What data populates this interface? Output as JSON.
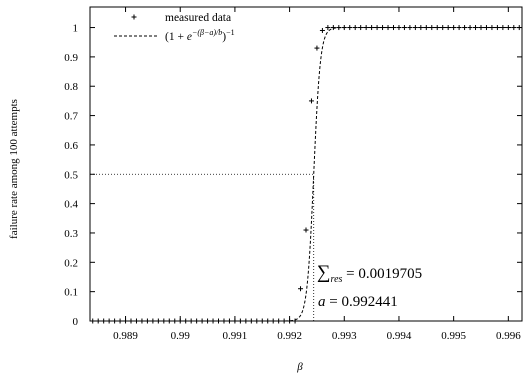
{
  "chart_data": {
    "type": "scatter",
    "title": "",
    "xlabel": "β",
    "ylabel": "failure rate among 100 attempts",
    "xlim": [
      0.98835,
      0.99625
    ],
    "ylim": [
      0,
      1.07
    ],
    "x_ticks": [
      0.989,
      0.99,
      0.991,
      0.992,
      0.993,
      0.994,
      0.995,
      0.996
    ],
    "x_tick_labels": [
      "0.989",
      "0.99",
      "0.991",
      "0.992",
      "0.993",
      "0.994",
      "0.995",
      "0.996"
    ],
    "y_ticks": [
      0,
      0.1,
      0.2,
      0.3,
      0.4,
      0.5,
      0.6,
      0.7,
      0.8,
      0.9,
      1
    ],
    "y_tick_labels": [
      "0",
      "0.1",
      "0.2",
      "0.3",
      "0.4",
      "0.5",
      "0.6",
      "0.7",
      "0.8",
      "0.9",
      "1"
    ],
    "grid": false,
    "legend_position": "top-left",
    "series": [
      {
        "name": "measured data",
        "type": "scatter",
        "marker": "+",
        "color": "#000000",
        "points": [
          [
            0.9884,
            0
          ],
          [
            0.9885,
            0
          ],
          [
            0.9886,
            0
          ],
          [
            0.9887,
            0
          ],
          [
            0.9888,
            0
          ],
          [
            0.9889,
            0
          ],
          [
            0.989,
            0
          ],
          [
            0.9891,
            0
          ],
          [
            0.9892,
            0
          ],
          [
            0.9893,
            0
          ],
          [
            0.9894,
            0
          ],
          [
            0.9895,
            0
          ],
          [
            0.9896,
            0
          ],
          [
            0.9897,
            0
          ],
          [
            0.9898,
            0
          ],
          [
            0.9899,
            0
          ],
          [
            0.99,
            0
          ],
          [
            0.9901,
            0
          ],
          [
            0.9902,
            0
          ],
          [
            0.9903,
            0
          ],
          [
            0.9904,
            0
          ],
          [
            0.9905,
            0
          ],
          [
            0.9906,
            0
          ],
          [
            0.9907,
            0
          ],
          [
            0.9908,
            0
          ],
          [
            0.9909,
            0
          ],
          [
            0.991,
            0
          ],
          [
            0.9911,
            0
          ],
          [
            0.9912,
            0
          ],
          [
            0.9913,
            0
          ],
          [
            0.9914,
            0
          ],
          [
            0.9915,
            0
          ],
          [
            0.9916,
            0
          ],
          [
            0.9917,
            0
          ],
          [
            0.9918,
            0
          ],
          [
            0.9919,
            0
          ],
          [
            0.992,
            0
          ],
          [
            0.9921,
            0
          ],
          [
            0.9922,
            0.11
          ],
          [
            0.9923,
            0.31
          ],
          [
            0.9924,
            0.75
          ],
          [
            0.9925,
            0.93
          ],
          [
            0.9926,
            0.99
          ],
          [
            0.9927,
            1
          ],
          [
            0.9928,
            1
          ],
          [
            0.9929,
            1
          ],
          [
            0.993,
            1
          ],
          [
            0.9931,
            1
          ],
          [
            0.9932,
            1
          ],
          [
            0.9933,
            1
          ],
          [
            0.9934,
            1
          ],
          [
            0.9935,
            1
          ],
          [
            0.9936,
            1
          ],
          [
            0.9937,
            1
          ],
          [
            0.9938,
            1
          ],
          [
            0.9939,
            1
          ],
          [
            0.994,
            1
          ],
          [
            0.9941,
            1
          ],
          [
            0.9942,
            1
          ],
          [
            0.9943,
            1
          ],
          [
            0.9944,
            1
          ],
          [
            0.9945,
            1
          ],
          [
            0.9946,
            1
          ],
          [
            0.9947,
            1
          ],
          [
            0.9948,
            1
          ],
          [
            0.9949,
            1
          ],
          [
            0.995,
            1
          ],
          [
            0.9951,
            1
          ],
          [
            0.9952,
            1
          ],
          [
            0.9953,
            1
          ],
          [
            0.9954,
            1
          ],
          [
            0.9955,
            1
          ],
          [
            0.9956,
            1
          ],
          [
            0.9957,
            1
          ],
          [
            0.9958,
            1
          ],
          [
            0.9959,
            1
          ],
          [
            0.996,
            1
          ],
          [
            0.9961,
            1
          ],
          [
            0.9962,
            1
          ]
        ]
      },
      {
        "name": "(1 + e^{-(β-a)/b})^{-1}",
        "type": "line",
        "dash": "dashed",
        "color": "#000000",
        "a": 0.992441,
        "b": 6.11e-05
      }
    ],
    "reference_lines": [
      {
        "orientation": "horizontal",
        "y": 0.5,
        "x_from": 0.98835,
        "x_to": 0.992441,
        "style": "dotted"
      },
      {
        "orientation": "vertical",
        "x": 0.992441,
        "y_from": 0,
        "y_to": 0.5,
        "style": "dotted"
      }
    ],
    "annotations": [
      {
        "name": "residual-sum",
        "text": "∑res = 0.0019705",
        "symbol": "∑",
        "subscript": "res",
        "value_text": " = 0.0019705"
      },
      {
        "name": "a-value",
        "text": "a = 0.992441",
        "symbol": "a",
        "value_text": " = 0.992441"
      }
    ]
  }
}
